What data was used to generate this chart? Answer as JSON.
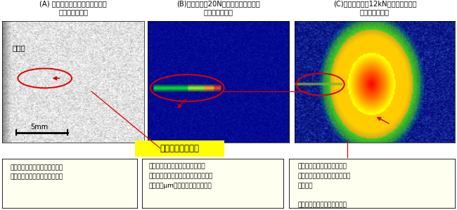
{
  "title_A": "(A) 疲労亀裂発生後に応力発光膜",
  "title_A2": "を塗布した外観",
  "title_B": "(B)負荷小　（20N）　の応力発光画像",
  "title_B2": "（擬似色表示）",
  "title_C": "(C)　負荷大　（12kN）　の発光画像",
  "title_C2": "（擬似色表示）",
  "label_crack": "亀裂の発生した所",
  "label_film": "発光膜",
  "label_scale": "5mm",
  "text_A": "・目視のできない疲労亀裂発生\n・題微鏡観察で亀裂進展を確認",
  "text_B": "・亀裂の先端に応力場の異常ない\n・負荷条件では安定な亀裂・危険度小\n・実寸幅μmの疲労亀裂を一目瞭然",
  "text_C": "・亀裂の先端応力場の異常大\n・負荷条件では亀裂の進展大・\n危険度大\n\n赤の領域は危険な応力レベル\nによる発光",
  "bg_color": "#ffffff",
  "note_bg": "#fffff0",
  "crack_label_bg": "#ffff00"
}
